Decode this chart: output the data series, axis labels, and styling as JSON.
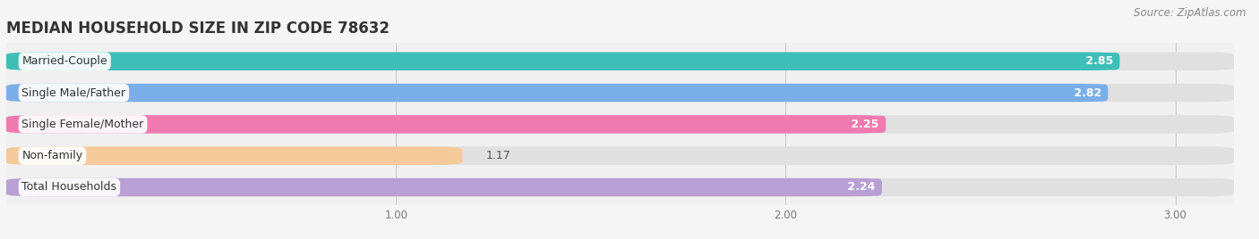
{
  "title": "MEDIAN HOUSEHOLD SIZE IN ZIP CODE 78632",
  "source": "Source: ZipAtlas.com",
  "categories": [
    "Married-Couple",
    "Single Male/Father",
    "Single Female/Mother",
    "Non-family",
    "Total Households"
  ],
  "values": [
    2.85,
    2.82,
    2.25,
    1.17,
    2.24
  ],
  "bar_colors": [
    "#3dbfb8",
    "#7aaee8",
    "#f07ab0",
    "#f5c99a",
    "#b89fd4"
  ],
  "value_label_bg": [
    "#3dbfb8",
    "#7aaee8",
    "#f07ab0",
    "#aaaaaa",
    "#b89fd4"
  ],
  "xlim": [
    0.0,
    3.15
  ],
  "xticks": [
    1.0,
    2.0,
    3.0
  ],
  "background_color": "#f5f5f5",
  "plot_bg_color": "#f0f0f0",
  "title_fontsize": 12,
  "source_fontsize": 8.5,
  "label_fontsize": 9,
  "category_fontsize": 9,
  "bar_height": 0.58,
  "bar_gap": 0.12,
  "fig_width": 14.06,
  "fig_height": 2.68
}
